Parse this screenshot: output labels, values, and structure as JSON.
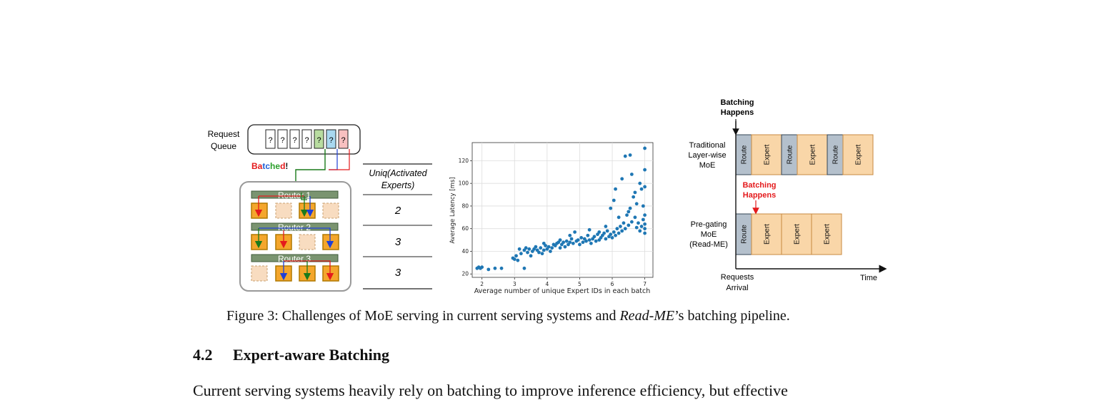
{
  "left_panel": {
    "queue_label_line1": "Request",
    "queue_label_line2": "Queue",
    "queue_slots": [
      "?",
      "?",
      "?",
      "?",
      "?",
      "?",
      "?"
    ],
    "batched_letters": [
      {
        "ch": "B",
        "color": "#e41a1c"
      },
      {
        "ch": "a",
        "color": "#e41a1c"
      },
      {
        "ch": "t",
        "color": "#1f5fd6"
      },
      {
        "ch": "c",
        "color": "#1f5fd6"
      },
      {
        "ch": "h",
        "color": "#2ca02c"
      },
      {
        "ch": "e",
        "color": "#2ca02c"
      },
      {
        "ch": "d",
        "color": "#e41a1c"
      },
      {
        "ch": "!",
        "color": "#111111"
      }
    ],
    "routers": [
      "Router 1",
      "Router 2",
      "Router 3"
    ]
  },
  "table": {
    "header_line1": "Uniq(Activated",
    "header_line2": "Experts)",
    "rows": [
      "2",
      "3",
      "3"
    ]
  },
  "chart_data": {
    "type": "scatter",
    "xlabel": "Average number of unique Expert IDs in each batch",
    "ylabel": "Average Latency [ms]",
    "xlim": [
      1.7,
      7.25
    ],
    "ylim": [
      17,
      136
    ],
    "xticks": [
      "2",
      "3",
      "4",
      "5",
      "6",
      "7"
    ],
    "yticks": [
      "20",
      "40",
      "60",
      "80",
      "100",
      "120"
    ],
    "grid": true,
    "color": "#1f77b4",
    "points": [
      [
        1.85,
        25
      ],
      [
        1.9,
        26
      ],
      [
        1.95,
        25
      ],
      [
        2.0,
        26
      ],
      [
        2.2,
        24
      ],
      [
        2.4,
        25
      ],
      [
        2.6,
        25
      ],
      [
        2.95,
        34
      ],
      [
        3.0,
        33
      ],
      [
        3.05,
        36
      ],
      [
        3.1,
        32
      ],
      [
        3.15,
        42
      ],
      [
        3.2,
        38
      ],
      [
        3.3,
        41
      ],
      [
        3.3,
        25
      ],
      [
        3.35,
        43
      ],
      [
        3.4,
        39
      ],
      [
        3.45,
        42
      ],
      [
        3.5,
        36
      ],
      [
        3.55,
        40
      ],
      [
        3.6,
        42
      ],
      [
        3.65,
        44
      ],
      [
        3.7,
        41
      ],
      [
        3.75,
        39
      ],
      [
        3.8,
        43
      ],
      [
        3.85,
        38
      ],
      [
        3.9,
        41
      ],
      [
        3.95,
        45
      ],
      [
        4.0,
        42
      ],
      [
        4.05,
        44
      ],
      [
        4.1,
        40
      ],
      [
        4.15,
        43
      ],
      [
        4.2,
        46
      ],
      [
        4.25,
        45
      ],
      [
        4.3,
        47
      ],
      [
        4.35,
        48
      ],
      [
        4.4,
        43
      ],
      [
        4.45,
        46
      ],
      [
        4.5,
        48
      ],
      [
        4.55,
        44
      ],
      [
        4.6,
        49
      ],
      [
        4.65,
        46
      ],
      [
        4.7,
        48
      ],
      [
        4.75,
        51
      ],
      [
        4.8,
        47
      ],
      [
        4.85,
        57
      ],
      [
        4.9,
        49
      ],
      [
        4.95,
        50
      ],
      [
        5.0,
        46
      ],
      [
        5.05,
        52
      ],
      [
        5.1,
        48
      ],
      [
        5.15,
        51
      ],
      [
        5.2,
        49
      ],
      [
        5.25,
        54
      ],
      [
        5.3,
        50
      ],
      [
        5.35,
        47
      ],
      [
        5.4,
        51
      ],
      [
        5.45,
        53
      ],
      [
        5.5,
        49
      ],
      [
        5.55,
        55
      ],
      [
        5.6,
        50
      ],
      [
        5.65,
        52
      ],
      [
        5.7,
        54
      ],
      [
        5.75,
        56
      ],
      [
        5.8,
        51
      ],
      [
        5.85,
        58
      ],
      [
        5.9,
        53
      ],
      [
        5.95,
        55
      ],
      [
        6.0,
        52
      ],
      [
        6.05,
        57
      ],
      [
        6.1,
        54
      ],
      [
        6.15,
        60
      ],
      [
        6.2,
        56
      ],
      [
        6.25,
        62
      ],
      [
        6.3,
        58
      ],
      [
        6.35,
        65
      ],
      [
        6.4,
        60
      ],
      [
        6.45,
        72
      ],
      [
        6.5,
        63
      ],
      [
        6.55,
        78
      ],
      [
        6.6,
        66
      ],
      [
        6.65,
        88
      ],
      [
        6.7,
        70
      ],
      [
        6.75,
        61
      ],
      [
        6.8,
        65
      ],
      [
        6.85,
        58
      ],
      [
        6.9,
        62
      ],
      [
        6.95,
        68
      ],
      [
        7.0,
        56
      ],
      [
        7.0,
        60
      ],
      [
        7.0,
        64
      ],
      [
        7.0,
        72
      ],
      [
        7.0,
        97
      ],
      [
        7.0,
        112
      ],
      [
        7.0,
        131
      ],
      [
        6.05,
        85
      ],
      [
        6.1,
        95
      ],
      [
        6.3,
        104
      ],
      [
        6.4,
        124
      ],
      [
        6.55,
        125
      ],
      [
        6.6,
        108
      ],
      [
        6.75,
        82
      ],
      [
        6.85,
        100
      ],
      [
        6.95,
        80
      ],
      [
        5.95,
        78
      ],
      [
        5.6,
        57
      ],
      [
        5.3,
        59
      ],
      [
        4.7,
        54
      ],
      [
        4.4,
        50
      ],
      [
        3.9,
        47
      ],
      [
        5.8,
        62
      ],
      [
        6.2,
        70
      ],
      [
        6.5,
        75
      ],
      [
        6.7,
        92
      ],
      [
        6.9,
        95
      ]
    ]
  },
  "timeline": {
    "batching_top_line1": "Batching",
    "batching_top_line2": "Happens",
    "batching_red_line1": "Batching",
    "batching_red_line2": "Happens",
    "traditional_label": [
      "Traditional",
      "Layer-wise",
      "MoE"
    ],
    "pregating_label": [
      "Pre-gating",
      "MoE",
      "(Read-ME)"
    ],
    "traditional_blocks": [
      "Route",
      "Expert",
      "Route",
      "Expert",
      "Route",
      "Expert"
    ],
    "pregating_blocks": [
      "Route",
      "Expert",
      "Expert",
      "Expert"
    ],
    "x_start_line1": "Requests",
    "x_start_line2": "Arrival",
    "x_end": "Time"
  },
  "caption": {
    "prefix": "Figure 3: Challenges of MoE serving in current serving systems and ",
    "italic": "Read-ME",
    "suffix": "’s batching pipeline."
  },
  "section": {
    "number": "4.2",
    "title": "Expert-aware Batching"
  },
  "body_line": "Current serving systems heavily rely on batching to improve inference efficiency, but effective"
}
